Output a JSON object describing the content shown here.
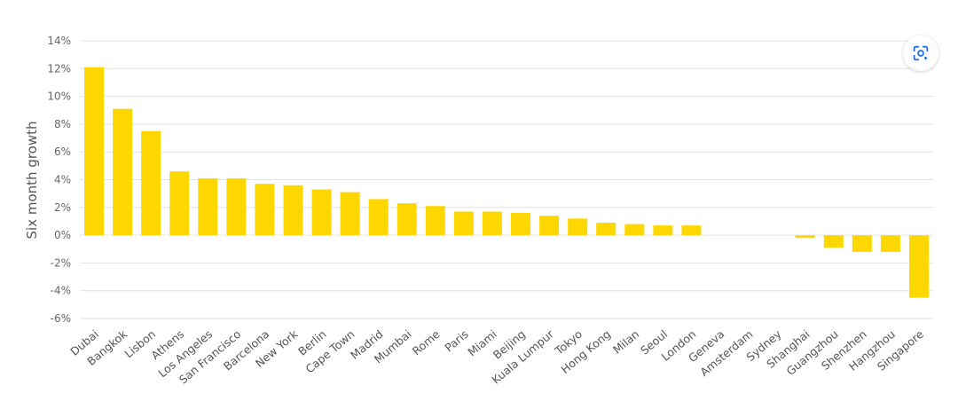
{
  "chart_data": {
    "type": "bar",
    "title": "",
    "xlabel": "",
    "ylabel": "Six month growth",
    "ylim": [
      -6,
      14
    ],
    "yticks": [
      14,
      12,
      10,
      8,
      6,
      4,
      2,
      0,
      -2,
      -4,
      -6
    ],
    "ytick_suffix": "%",
    "grid": true,
    "bar_color": "#FFD700",
    "categories": [
      "Dubai",
      "Bangkok",
      "Lisbon",
      "Athens",
      "Los Angeles",
      "San Francisco",
      "Barcelona",
      "New York",
      "Berlin",
      "Cape Town",
      "Madrid",
      "Mumbai",
      "Rome",
      "Paris",
      "Miami",
      "Beijing",
      "Kuala Lumpur",
      "Tokyo",
      "Hong Kong",
      "Milan",
      "Seoul",
      "London",
      "Geneva",
      "Amsterdam",
      "Sydney",
      "Shanghai",
      "Guangzhou",
      "Shenzhen",
      "Hangzhou",
      "Singapore"
    ],
    "values": [
      12.1,
      9.1,
      7.5,
      4.6,
      4.1,
      4.1,
      3.7,
      3.6,
      3.3,
      3.1,
      2.6,
      2.3,
      2.1,
      1.7,
      1.7,
      1.6,
      1.4,
      1.2,
      0.9,
      0.8,
      0.7,
      0.7,
      0,
      0,
      0,
      -0.2,
      -0.9,
      -1.2,
      -1.2,
      -4.5
    ]
  },
  "ui": {
    "lens_icon": "google-lens-icon",
    "lens_color": "#1a73e8"
  }
}
